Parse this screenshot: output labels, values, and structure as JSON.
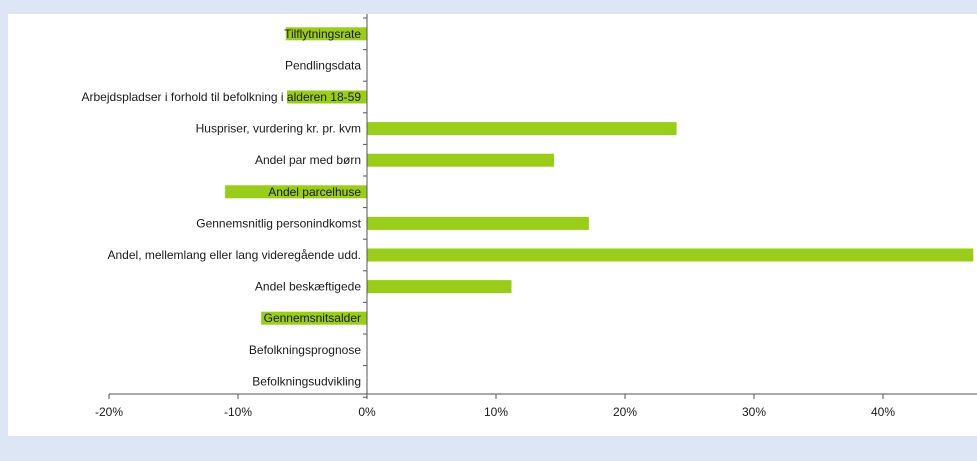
{
  "colors": {
    "bar": "#9acd1a",
    "axis": "#555555",
    "frame": "#dde6f4",
    "plot_background": "#ffffff",
    "text": "#1a1a1a"
  },
  "chart_data": {
    "type": "bar",
    "orientation": "horizontal",
    "title": "",
    "xlabel": "",
    "ylabel": "",
    "xlim": [
      -0.2,
      0.47
    ],
    "x_ticks": [
      -0.2,
      -0.1,
      0,
      0.1,
      0.2,
      0.3,
      0.4
    ],
    "x_tick_labels": [
      "-20%",
      "-10%",
      "0%",
      "10%",
      "20%",
      "30%",
      "40%"
    ],
    "grid": false,
    "legend": "none",
    "categories": [
      "Tilflytningsrate",
      "Pendlingsdata",
      "Arbejdspladser i forhold til befolkning i alderen 18-59",
      "Huspriser, vurdering kr. pr. kvm",
      "Andel par med børn",
      "Andel parcelhuse",
      "Gennemsnitlig personindkomst",
      "Andel, mellemlang eller lang videregående udd.",
      "Andel beskæftigede",
      "Gennemsnitsalder",
      "Befolkningsprognose",
      "Befolkningsudvikling"
    ],
    "values": [
      -0.063,
      0,
      -0.062,
      0.24,
      0.145,
      -0.11,
      0.172,
      0.47,
      0.112,
      -0.082,
      0,
      0
    ]
  }
}
